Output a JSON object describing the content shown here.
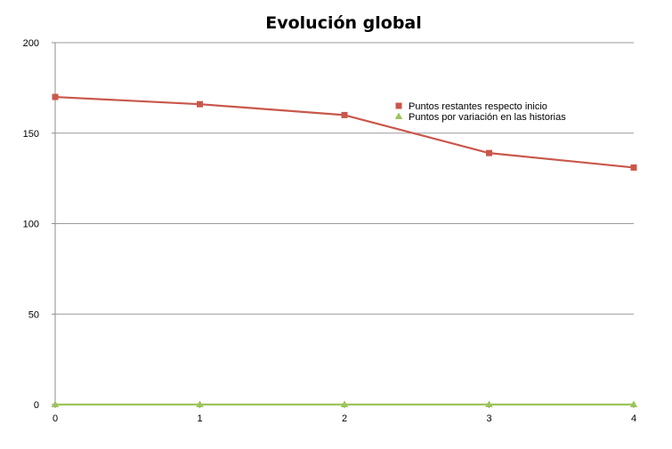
{
  "chart_data": {
    "type": "line",
    "title": "Evolución global",
    "xlabel": "",
    "ylabel": "",
    "x": [
      0,
      1,
      2,
      3,
      4
    ],
    "xlim": [
      0,
      4
    ],
    "ylim": [
      0,
      200
    ],
    "x_ticks": [
      "0",
      "1",
      "2",
      "3",
      "4"
    ],
    "y_ticks": [
      "0",
      "50",
      "100",
      "150",
      "200"
    ],
    "grid": true,
    "legend_position": "right",
    "series": [
      {
        "name": "Puntos restantes respecto inicio",
        "values": [
          170,
          166,
          160,
          139,
          131
        ],
        "color": "#c9574b",
        "marker": "square"
      },
      {
        "name": "Puntos por variación en las historias",
        "values": [
          0,
          0,
          0,
          0,
          0
        ],
        "color": "#9bc45a",
        "marker": "triangle"
      }
    ],
    "colors": {
      "grid": "#9a9a9a",
      "axis": "#8c8c8c"
    }
  }
}
